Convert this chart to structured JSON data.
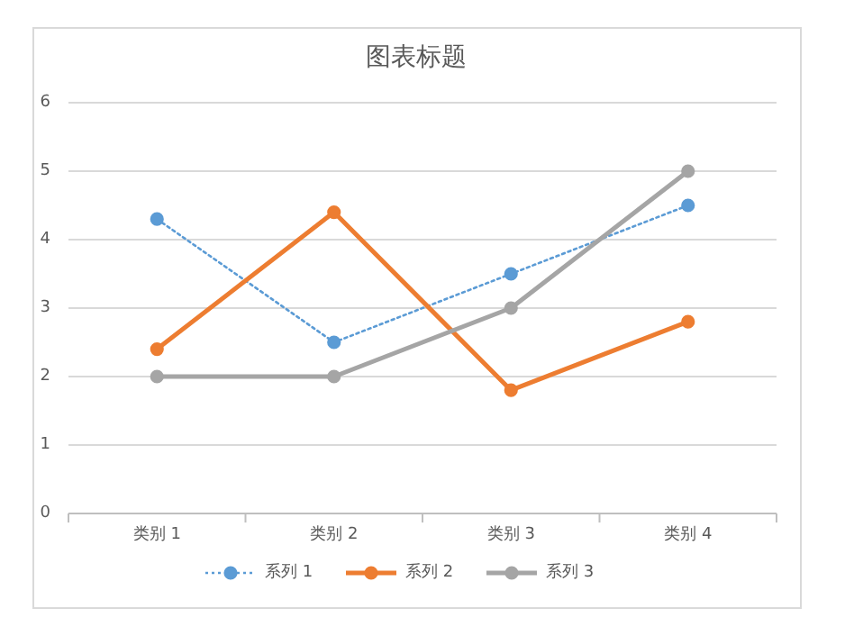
{
  "chart_data": {
    "type": "line",
    "title": "图表标题",
    "categories": [
      "类别 1",
      "类别 2",
      "类别 3",
      "类别 4"
    ],
    "series": [
      {
        "name": "系列 1",
        "color": "#5b9bd5",
        "values": [
          4.3,
          2.5,
          3.5,
          4.5
        ],
        "line_style": "dotted"
      },
      {
        "name": "系列 2",
        "color": "#ed7d31",
        "values": [
          2.4,
          4.4,
          1.8,
          2.8
        ],
        "line_style": "solid"
      },
      {
        "name": "系列 3",
        "color": "#a5a5a5",
        "values": [
          2,
          2,
          3,
          5
        ],
        "line_style": "solid"
      }
    ],
    "ylim": [
      0,
      6
    ],
    "yticks": [
      0,
      1,
      2,
      3,
      4,
      5,
      6
    ],
    "grid": "y",
    "legend": "bottom",
    "marker": "circle"
  }
}
